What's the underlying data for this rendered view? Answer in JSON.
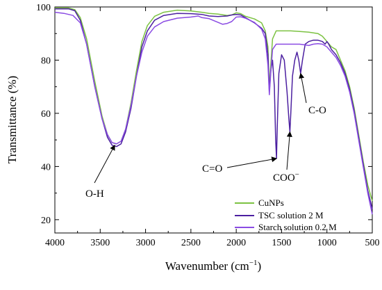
{
  "chart_data": {
    "type": "line",
    "xlabel": "Wavenumber (cm",
    "xlabel_sup": "−1",
    "xlabel_close": ")",
    "ylabel": "Transmittance (%)",
    "xlim": [
      4000,
      500
    ],
    "ylim": [
      15,
      100
    ],
    "x_ticks": [
      4000,
      3500,
      3000,
      2500,
      2000,
      1500,
      1000,
      500
    ],
    "y_ticks": [
      20,
      40,
      60,
      80,
      100
    ],
    "legend_position": "bottom-right",
    "series": [
      {
        "name": "CuNPs",
        "color": "#7cc242",
        "points": [
          [
            4000,
            99.6
          ],
          [
            3850,
            99.6
          ],
          [
            3780,
            99
          ],
          [
            3720,
            96
          ],
          [
            3650,
            88
          ],
          [
            3560,
            72
          ],
          [
            3480,
            59
          ],
          [
            3420,
            52
          ],
          [
            3370,
            49
          ],
          [
            3320,
            48.5
          ],
          [
            3270,
            49.5
          ],
          [
            3220,
            54
          ],
          [
            3160,
            64
          ],
          [
            3100,
            76
          ],
          [
            3040,
            87
          ],
          [
            2980,
            93
          ],
          [
            2900,
            96.5
          ],
          [
            2800,
            98
          ],
          [
            2650,
            98.8
          ],
          [
            2500,
            98.5
          ],
          [
            2380,
            98
          ],
          [
            2300,
            97.6
          ],
          [
            2200,
            97.3
          ],
          [
            2100,
            96.8
          ],
          [
            2050,
            97
          ],
          [
            2000,
            97.8
          ],
          [
            1950,
            97.5
          ],
          [
            1900,
            96.5
          ],
          [
            1800,
            95.5
          ],
          [
            1720,
            94
          ],
          [
            1680,
            91
          ],
          [
            1650,
            85
          ],
          [
            1635,
            69
          ],
          [
            1620,
            78
          ],
          [
            1600,
            88
          ],
          [
            1560,
            91
          ],
          [
            1500,
            91
          ],
          [
            1400,
            91
          ],
          [
            1300,
            90.8
          ],
          [
            1200,
            90.5
          ],
          [
            1100,
            90
          ],
          [
            1050,
            89
          ],
          [
            1000,
            87
          ],
          [
            950,
            85
          ],
          [
            900,
            84
          ],
          [
            850,
            80
          ],
          [
            800,
            76
          ],
          [
            750,
            70
          ],
          [
            700,
            62
          ],
          [
            650,
            52
          ],
          [
            600,
            42
          ],
          [
            550,
            33
          ],
          [
            500,
            27
          ]
        ]
      },
      {
        "name": "TSC solution 2 M",
        "color": "#4b1fa0",
        "points": [
          [
            4000,
            99.3
          ],
          [
            3850,
            99.3
          ],
          [
            3780,
            98.6
          ],
          [
            3720,
            95
          ],
          [
            3650,
            86
          ],
          [
            3560,
            70
          ],
          [
            3480,
            58
          ],
          [
            3420,
            51
          ],
          [
            3370,
            48
          ],
          [
            3320,
            47.5
          ],
          [
            3270,
            48.5
          ],
          [
            3220,
            53
          ],
          [
            3160,
            62
          ],
          [
            3100,
            74
          ],
          [
            3040,
            85
          ],
          [
            2980,
            91
          ],
          [
            2900,
            95
          ],
          [
            2800,
            96.8
          ],
          [
            2650,
            97.6
          ],
          [
            2500,
            97.5
          ],
          [
            2380,
            97.2
          ],
          [
            2300,
            96.6
          ],
          [
            2200,
            96.4
          ],
          [
            2100,
            96.6
          ],
          [
            2050,
            97
          ],
          [
            2000,
            97.2
          ],
          [
            1950,
            97
          ],
          [
            1900,
            96
          ],
          [
            1800,
            94
          ],
          [
            1720,
            92
          ],
          [
            1680,
            90
          ],
          [
            1650,
            82
          ],
          [
            1635,
            68
          ],
          [
            1620,
            76
          ],
          [
            1600,
            80
          ],
          [
            1580,
            70
          ],
          [
            1565,
            50
          ],
          [
            1556,
            43
          ],
          [
            1548,
            55
          ],
          [
            1530,
            75
          ],
          [
            1500,
            82
          ],
          [
            1470,
            80
          ],
          [
            1440,
            68
          ],
          [
            1420,
            58
          ],
          [
            1408,
            53
          ],
          [
            1398,
            60
          ],
          [
            1380,
            74
          ],
          [
            1355,
            80
          ],
          [
            1330,
            83
          ],
          [
            1310,
            80
          ],
          [
            1290,
            75
          ],
          [
            1270,
            80
          ],
          [
            1240,
            86
          ],
          [
            1200,
            87
          ],
          [
            1150,
            87.5
          ],
          [
            1100,
            87.5
          ],
          [
            1050,
            87
          ],
          [
            1020,
            86
          ],
          [
            1000,
            87
          ],
          [
            980,
            86
          ],
          [
            950,
            84
          ],
          [
            900,
            82
          ],
          [
            850,
            79
          ],
          [
            800,
            75
          ],
          [
            750,
            69
          ],
          [
            700,
            61
          ],
          [
            650,
            51
          ],
          [
            600,
            41
          ],
          [
            550,
            31
          ],
          [
            500,
            24
          ]
        ]
      },
      {
        "name": "Starch solution 0.2 M",
        "color": "#8a4be3",
        "points": [
          [
            4000,
            98
          ],
          [
            3900,
            97.6
          ],
          [
            3800,
            96.8
          ],
          [
            3720,
            94
          ],
          [
            3650,
            86
          ],
          [
            3560,
            70
          ],
          [
            3480,
            58
          ],
          [
            3420,
            52
          ],
          [
            3370,
            49
          ],
          [
            3320,
            48.5
          ],
          [
            3270,
            49.5
          ],
          [
            3220,
            54
          ],
          [
            3160,
            63
          ],
          [
            3100,
            74
          ],
          [
            3040,
            83
          ],
          [
            2980,
            89
          ],
          [
            2900,
            92.5
          ],
          [
            2800,
            94.5
          ],
          [
            2650,
            95.8
          ],
          [
            2500,
            96.2
          ],
          [
            2420,
            96.6
          ],
          [
            2380,
            96
          ],
          [
            2300,
            95.6
          ],
          [
            2200,
            94.2
          ],
          [
            2150,
            93.5
          ],
          [
            2100,
            93.8
          ],
          [
            2050,
            94.5
          ],
          [
            2000,
            96.2
          ],
          [
            1950,
            96.3
          ],
          [
            1900,
            95.8
          ],
          [
            1800,
            94.2
          ],
          [
            1720,
            91.6
          ],
          [
            1680,
            88
          ],
          [
            1650,
            78
          ],
          [
            1635,
            67
          ],
          [
            1620,
            75
          ],
          [
            1600,
            84
          ],
          [
            1560,
            86
          ],
          [
            1500,
            86
          ],
          [
            1400,
            86
          ],
          [
            1300,
            86
          ],
          [
            1200,
            85.5
          ],
          [
            1150,
            86
          ],
          [
            1100,
            86.2
          ],
          [
            1050,
            86
          ],
          [
            1000,
            85
          ],
          [
            950,
            83
          ],
          [
            900,
            81
          ],
          [
            850,
            78
          ],
          [
            800,
            74
          ],
          [
            750,
            68
          ],
          [
            700,
            60
          ],
          [
            650,
            50
          ],
          [
            600,
            40
          ],
          [
            550,
            30
          ],
          [
            500,
            22
          ]
        ]
      }
    ],
    "annotations": [
      {
        "label": "O-H",
        "target": [
          3340,
          48
        ]
      },
      {
        "label": "C=O",
        "target": [
          1556,
          43
        ]
      },
      {
        "label": "COO",
        "sup": "−",
        "target": [
          1408,
          53
        ]
      },
      {
        "label": "C-O",
        "target": [
          1290,
          75
        ]
      }
    ]
  }
}
